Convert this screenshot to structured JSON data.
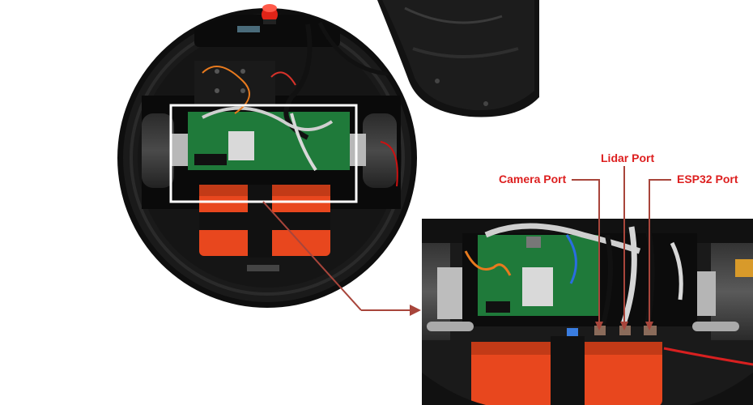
{
  "labels": {
    "camera_port": "Camera Port",
    "lidar_port": "Lidar Port",
    "esp32_port": "ESP32 Port"
  },
  "colors": {
    "annotation": "#dd1f1f",
    "arrow": "#a8453b",
    "highlight_box": "#ffffff",
    "robot_body": "#141414",
    "battery": "#e8471e",
    "pcb": "#1f7a3a"
  }
}
